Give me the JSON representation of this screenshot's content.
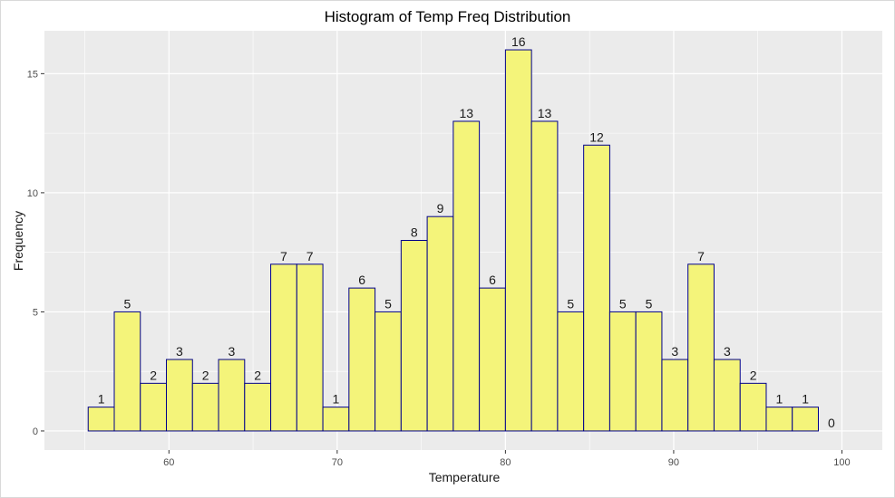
{
  "chart_data": {
    "type": "bar",
    "title": "Histogram of Temp Freq Distribution",
    "xlabel": "Temperature",
    "ylabel": "Frequency",
    "bin_width": 1.55,
    "bin_start": 55.2,
    "counts": [
      1,
      5,
      2,
      3,
      2,
      3,
      2,
      7,
      7,
      1,
      6,
      5,
      8,
      9,
      13,
      6,
      16,
      13,
      5,
      12,
      5,
      5,
      3,
      7,
      3,
      2,
      1,
      1,
      0
    ],
    "xlim": [
      52.6,
      102.4
    ],
    "ylim": [
      -0.8,
      16.8
    ],
    "x_ticks": [
      60,
      70,
      80,
      90,
      100
    ],
    "y_ticks": [
      0,
      5,
      10,
      15
    ],
    "grid": true,
    "bar_fill": "#f4f47a",
    "bar_outline": "#00008b",
    "panel_background": "#ebebeb",
    "grid_color": "#ffffff"
  }
}
